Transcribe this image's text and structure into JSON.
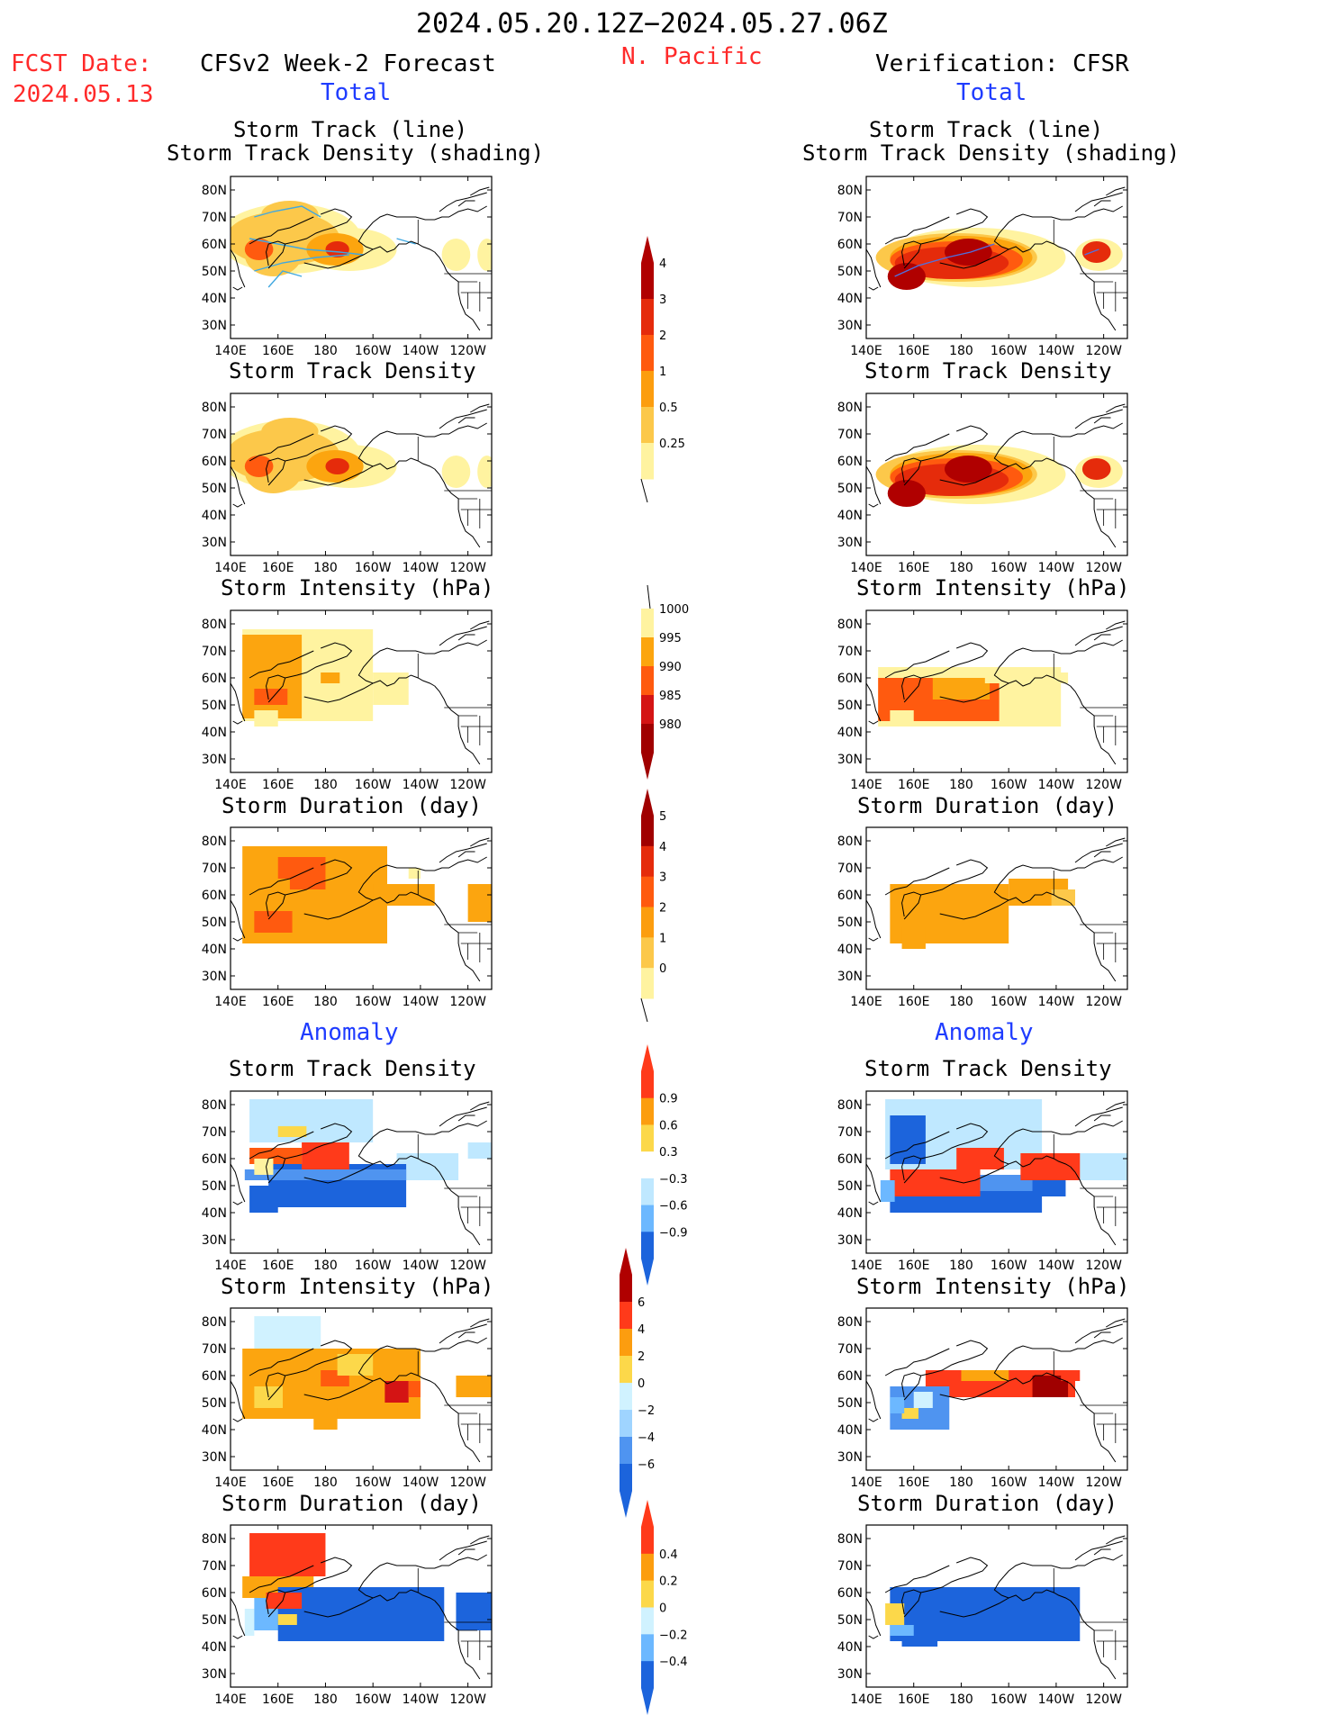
{
  "header": {
    "title": "2024.05.20.12Z−2024.05.27.06Z",
    "region": "N. Pacific",
    "fcst_label": "FCST Date:",
    "fcst_date": "2024.05.13",
    "left_heading": "CFSv2 Week-2 Forecast",
    "right_heading": "Verification: CFSR",
    "total_label": "Total",
    "anomaly_label": "Anomaly"
  },
  "panel_titles": {
    "track_line": "Storm Track (line)",
    "track_shading": "Storm Track Density (shading)",
    "density": "Storm Track Density",
    "intensity": "Storm Intensity (hPa)",
    "duration": "Storm Duration (day)"
  },
  "axes": {
    "lat_labels": [
      "80N",
      "70N",
      "60N",
      "50N",
      "40N",
      "30N"
    ],
    "lon_labels": [
      "140E",
      "160E",
      "180",
      "160W",
      "140W",
      "120W"
    ]
  },
  "colorbars": {
    "density_total": {
      "labels": [
        "4",
        "3",
        "2",
        "1",
        "0.5",
        "0.25"
      ],
      "colors": [
        "#b00000",
        "#e52b0b",
        "#ff5a0f",
        "#fc9d0f",
        "#fcc84a",
        "#fff3a0"
      ]
    },
    "intensity_total": {
      "labels": [
        "1000",
        "995",
        "990",
        "985",
        "980"
      ],
      "colors": [
        "#fff3a0",
        "#fca50f",
        "#ff5a0f",
        "#d41414",
        "#a00000"
      ]
    },
    "duration_total": {
      "labels": [
        "5",
        "4",
        "3",
        "2",
        "1",
        "0"
      ],
      "colors": [
        "#a00000",
        "#e52b0b",
        "#ff5a0f",
        "#fc9d0f",
        "#fcc84a",
        "#fff3a0"
      ]
    },
    "density_anom": {
      "labels": [
        "0.9",
        "0.6",
        "0.3",
        "−0.3",
        "−0.6",
        "−0.9"
      ],
      "colors": [
        "#ff3a1a",
        "#fc9d0f",
        "#fcd84a",
        "#ffffff",
        "#bfe8ff",
        "#6cb8ff",
        "#1c64dc"
      ]
    },
    "intensity_anom": {
      "labels": [
        "6",
        "4",
        "2",
        "0",
        "−2",
        "−4",
        "−6"
      ],
      "colors": [
        "#b00000",
        "#ff3a1a",
        "#fc9d0f",
        "#fcd84a",
        "#d0f2ff",
        "#9fd4ff",
        "#4f94f0",
        "#1c64dc"
      ]
    },
    "duration_anom": {
      "labels": [
        "0.4",
        "0.2",
        "0",
        "−0.2",
        "−0.4"
      ],
      "colors": [
        "#ff3a1a",
        "#fc9d0f",
        "#fcd84a",
        "#d0f2ff",
        "#6cb8ff",
        "#1c64dc"
      ]
    }
  }
}
